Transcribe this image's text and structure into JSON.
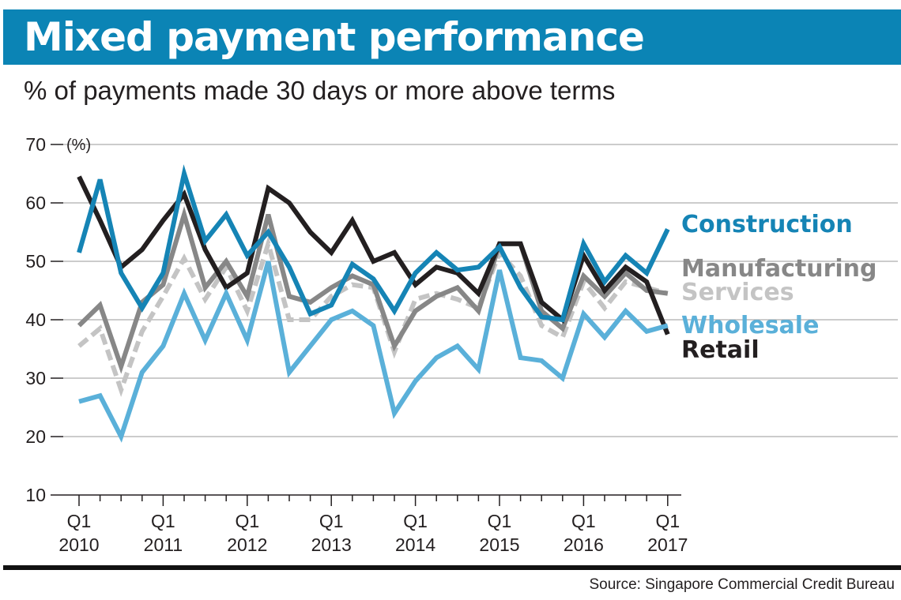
{
  "header": {
    "title": "Mixed payment performance",
    "subtitle": "% of payments made 30 days or more above terms"
  },
  "footer": {
    "source": "Source: Singapore Commercial Credit Bureau"
  },
  "chart_data": {
    "type": "line",
    "title": "Mixed payment performance",
    "subtitle": "% of payments made 30 days or more above terms",
    "ylabel": "(%)",
    "xlabel": "",
    "ylim": [
      10,
      70
    ],
    "yticks": [
      10,
      20,
      30,
      40,
      50,
      60,
      70
    ],
    "grid": true,
    "legend": "labels at right end of each line",
    "x": [
      "Q1 2010",
      "Q2 2010",
      "Q3 2010",
      "Q4 2010",
      "Q1 2011",
      "Q2 2011",
      "Q3 2011",
      "Q4 2011",
      "Q1 2012",
      "Q2 2012",
      "Q3 2012",
      "Q4 2012",
      "Q1 2013",
      "Q2 2013",
      "Q3 2013",
      "Q4 2013",
      "Q1 2014",
      "Q2 2014",
      "Q3 2014",
      "Q4 2014",
      "Q1 2015",
      "Q2 2015",
      "Q3 2015",
      "Q4 2015",
      "Q1 2016",
      "Q2 2016",
      "Q3 2016",
      "Q4 2016",
      "Q1 2017"
    ],
    "xtick_labels": [
      {
        "quarter": "Q1",
        "year": "2010"
      },
      {
        "quarter": "Q1",
        "year": "2011"
      },
      {
        "quarter": "Q1",
        "year": "2012"
      },
      {
        "quarter": "Q1",
        "year": "2013"
      },
      {
        "quarter": "Q1",
        "year": "2014"
      },
      {
        "quarter": "Q1",
        "year": "2015"
      },
      {
        "quarter": "Q1",
        "year": "2016"
      },
      {
        "quarter": "Q1",
        "year": "2017"
      }
    ],
    "series": [
      {
        "name": "Retail",
        "color": "#231f20",
        "values": [
          64.5,
          57,
          49,
          52,
          57,
          61.5,
          52,
          45.5,
          48,
          62.5,
          60,
          55,
          51.5,
          57,
          50,
          51.5,
          46,
          49,
          48,
          44.5,
          53,
          53,
          43,
          40,
          51,
          45,
          49,
          46.5,
          37.5
        ]
      },
      {
        "name": "Construction",
        "color": "#1584b5",
        "values": [
          51.5,
          64,
          48,
          42,
          48,
          65,
          53.5,
          58,
          51,
          55,
          49,
          41,
          42.5,
          49.5,
          47,
          41.5,
          48,
          51.5,
          48.5,
          49,
          52.5,
          45.5,
          40.5,
          40,
          53,
          46.5,
          51,
          48,
          55.5
        ]
      },
      {
        "name": "Manufacturing",
        "color": "#878787",
        "values": [
          39,
          42.5,
          32,
          43,
          46,
          58,
          45.5,
          50,
          44,
          58,
          44,
          43,
          45.5,
          47.5,
          46,
          35.5,
          41.5,
          44,
          45.5,
          41.5,
          53,
          53,
          41.5,
          38.5,
          47.5,
          44,
          48,
          45,
          44.5
        ]
      },
      {
        "name": "Services",
        "color": "#c4c4c4",
        "values": [
          35.5,
          38.5,
          28,
          38,
          44,
          50.5,
          43.5,
          49,
          41.5,
          53,
          40,
          40,
          44,
          46,
          45.5,
          34.5,
          43.5,
          44.5,
          43.5,
          42,
          51.5,
          47.5,
          39,
          37,
          46.5,
          42,
          46.5,
          45.5,
          44.5
        ]
      },
      {
        "name": "Wholesale",
        "color": "#5ab0d9",
        "values": [
          26,
          27,
          20,
          31,
          35.5,
          44.5,
          36.5,
          44.5,
          36.5,
          50,
          31,
          35.5,
          40,
          41.5,
          39,
          24,
          29.5,
          33.5,
          35.5,
          31.5,
          48.5,
          33.5,
          33,
          30,
          41,
          37,
          41.5,
          38,
          39
        ]
      }
    ]
  }
}
